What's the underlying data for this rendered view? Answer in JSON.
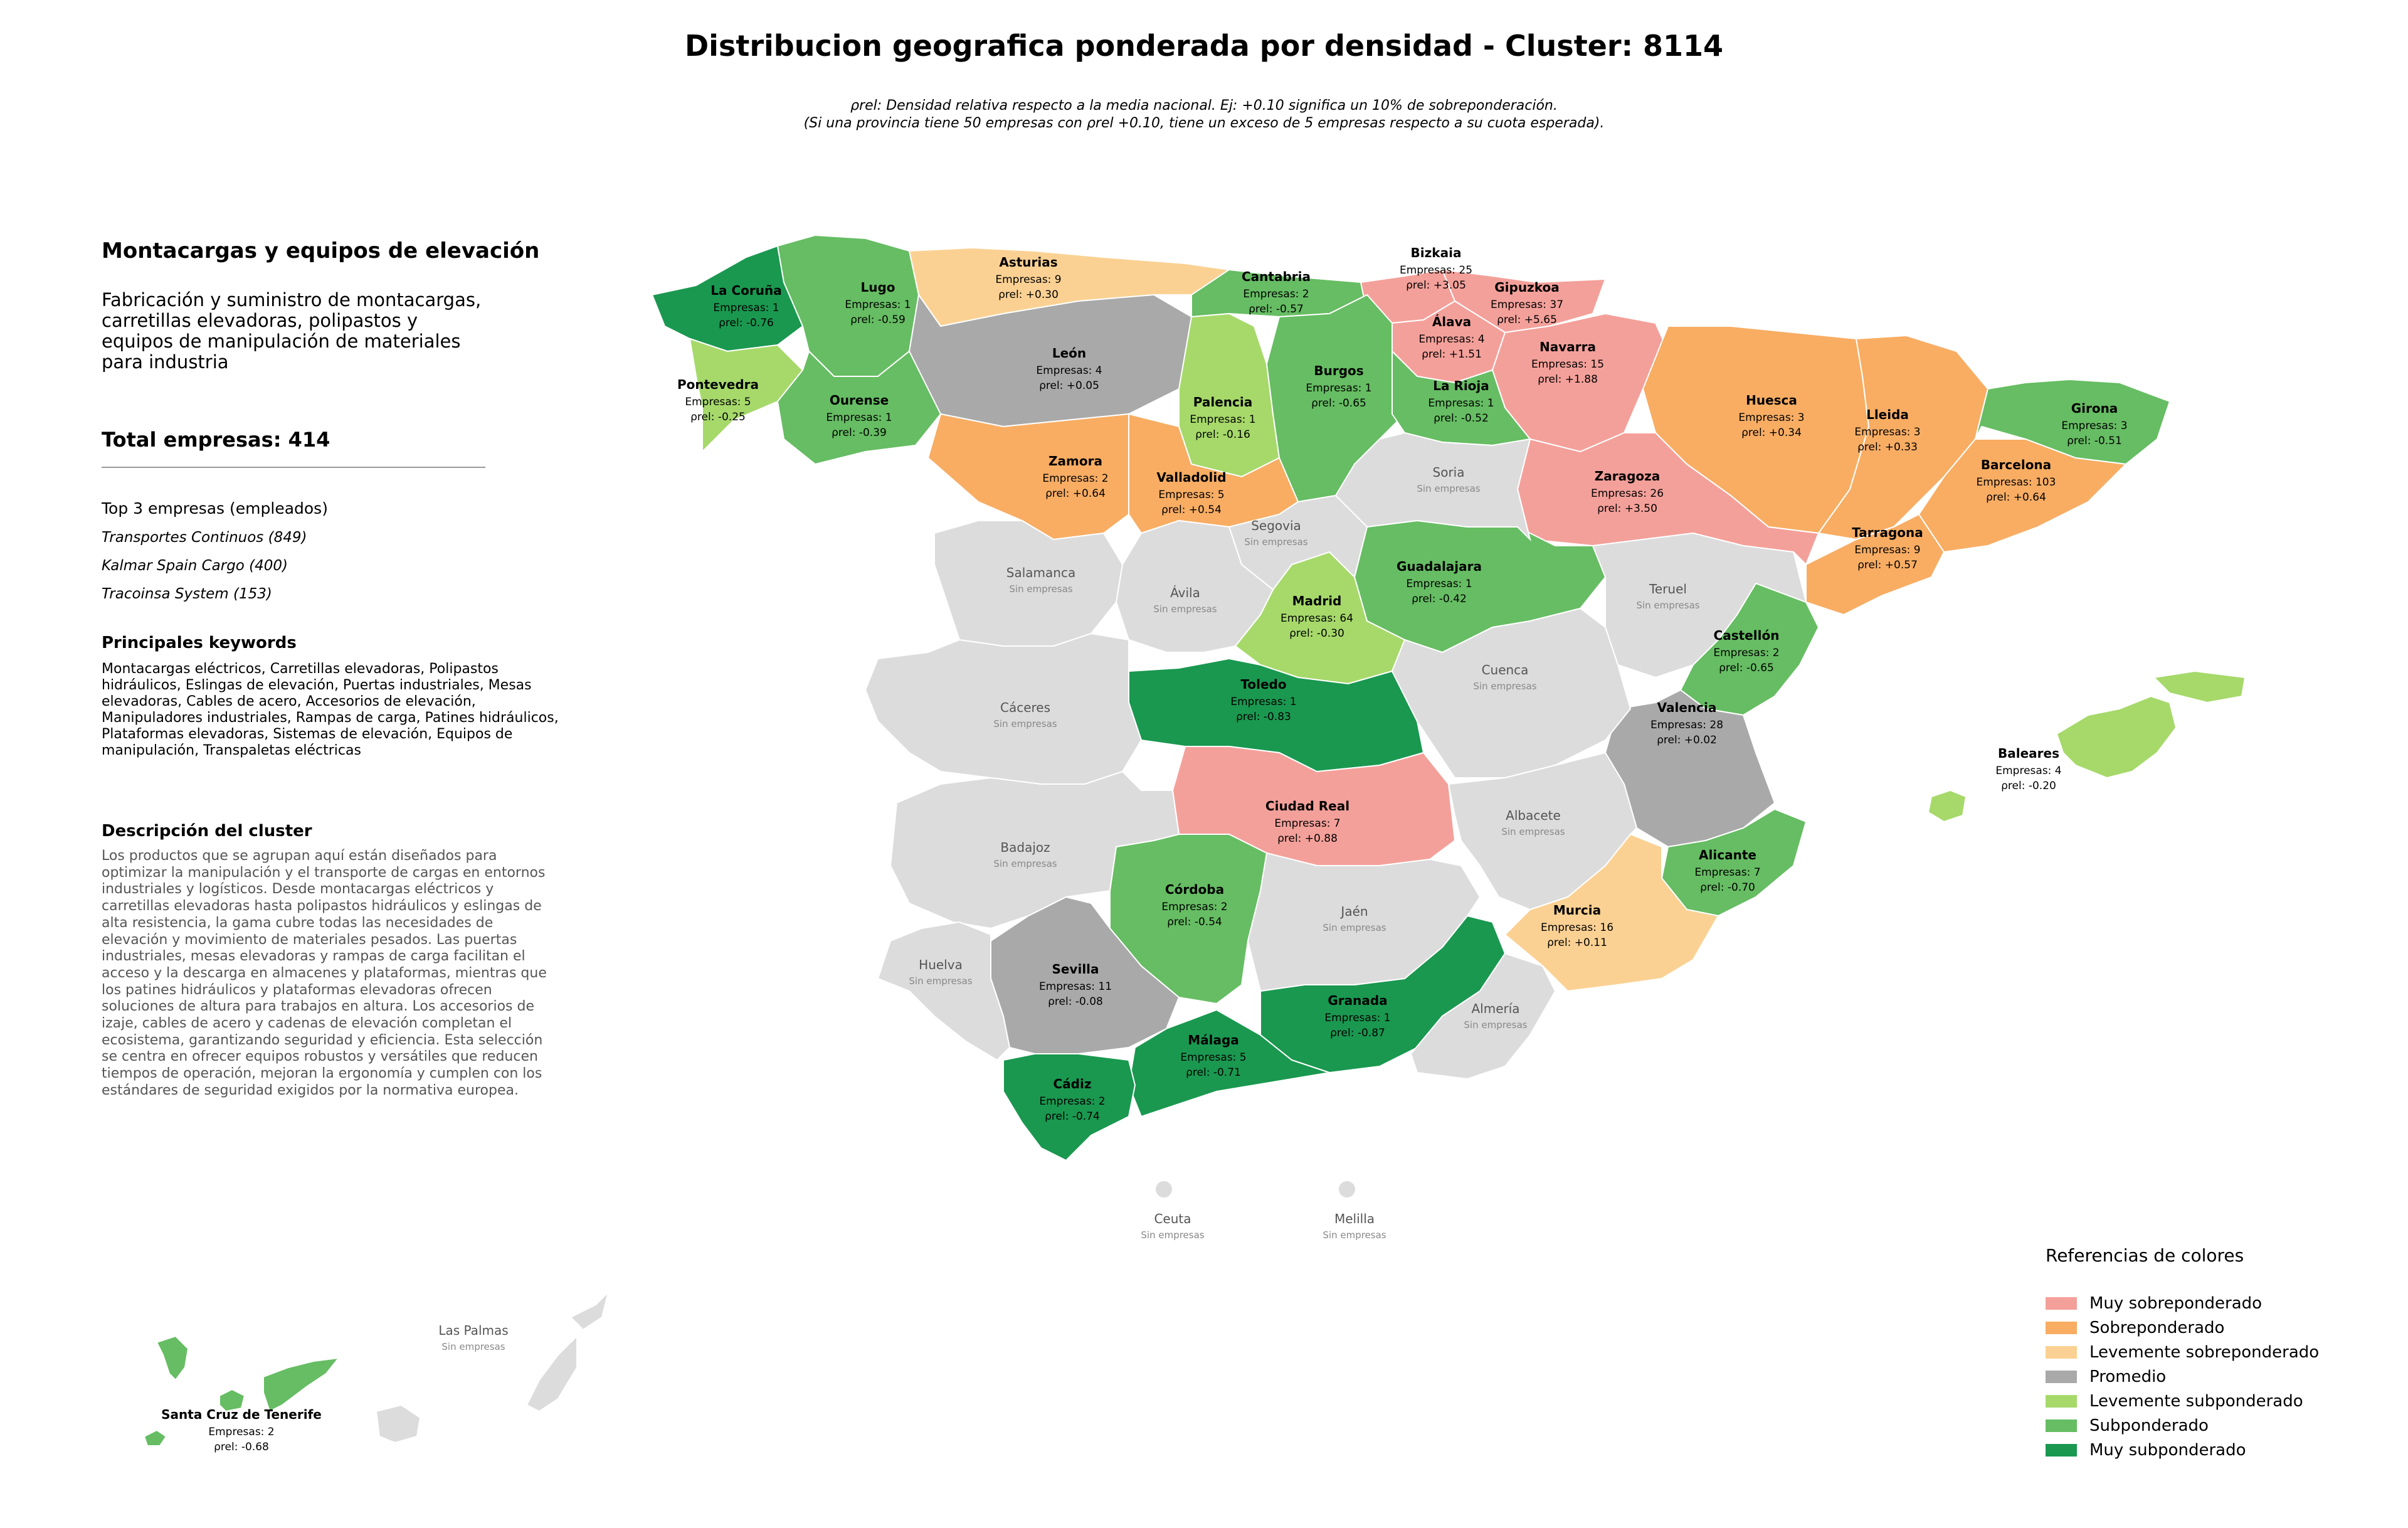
{
  "title": "Distribucion geografica ponderada por densidad - Cluster: 8114",
  "notes": [
    "ρrel: Densidad relativa respecto a la media nacional. Ej: +0.10 significa un 10% de sobreponderación.",
    "(Si una provincia tiene 50 empresas con ρrel +0.10, tiene un exceso de 5 empresas respecto a su cuota esperada)."
  ],
  "sidebar": {
    "heading": "Montacargas y equipos de elevación",
    "subtitle": "Fabricación y suministro de montacargas,\ncarretillas elevadoras, polipastos y\nequipos de manipulación de materiales\npara industria",
    "total": "Total empresas: 414",
    "top_title": "Top 3 empresas (empleados)",
    "top_companies": [
      "Transportes Continuos (849)",
      "Kalmar Spain Cargo (400)",
      "Tracoinsa System (153)"
    ],
    "keywords_title": "Principales keywords",
    "keywords": "Montacargas eléctricos, Carretillas elevadoras, Polipastos hidráulicos, Eslingas de elevación, Puertas industriales, Mesas elevadoras, Cables de acero, Accesorios de elevación, Manipuladores industriales, Rampas de carga, Patines hidráulicos, Plataformas elevadoras, Sistemas de elevación, Equipos de manipulación, Transpaletas eléctricas",
    "description_title": "Descripción del cluster",
    "description": "Los productos que se agrupan aquí están diseñados para optimizar la manipulación y el transporte de cargas en entornos industriales y logísticos. Desde montacargas eléctricos y carretillas elevadoras hasta polipastos hidráulicos y eslingas de alta resistencia, la gama cubre todas las necesidades de elevación y movimiento de materiales pesados. Las puertas industriales, mesas elevadoras y rampas de carga facilitan el acceso y la descarga en almacenes y plataformas, mientras que los patines hidráulicos y plataformas elevadoras ofrecen soluciones de altura para trabajos en altura. Los accesorios de izaje, cables de acero y cadenas de elevación completan el ecosistema, garantizando seguridad y eficiencia. Esta selección se centra en ofrecer equipos robustos y versátiles que reducen tiempos de operación, mejoran la ergonomía y cumplen con los estándares de seguridad exigidos por la normativa europea."
  },
  "legend": {
    "title": "Referencias de colores",
    "items": [
      {
        "label": "Muy sobreponderado",
        "color": "#f4a09a"
      },
      {
        "label": "Sobreponderado",
        "color": "#f8ad63"
      },
      {
        "label": "Levemente sobreponderado",
        "color": "#fbd193"
      },
      {
        "label": "Promedio",
        "color": "#a9a9a9"
      },
      {
        "label": "Levemente subponderado",
        "color": "#a6d96a"
      },
      {
        "label": "Subponderado",
        "color": "#66bd63"
      },
      {
        "label": "Muy subponderado",
        "color": "#1a9850"
      }
    ]
  },
  "labels": {
    "empresas_prefix": "Empresas: ",
    "rho_prefix": "ρrel: ",
    "sin_empresas": "Sin empresas"
  },
  "provinces": [
    {
      "name": "La Coruña",
      "empresas": 1,
      "rho": "-0.76",
      "cat": 6
    },
    {
      "name": "Lugo",
      "empresas": 1,
      "rho": "-0.59",
      "cat": 5
    },
    {
      "name": "Asturias",
      "empresas": 9,
      "rho": "+0.30",
      "cat": 2
    },
    {
      "name": "Cantabria",
      "empresas": 2,
      "rho": "-0.57",
      "cat": 5
    },
    {
      "name": "Bizkaia",
      "empresas": 25,
      "rho": "+3.05",
      "cat": 0
    },
    {
      "name": "Gipuzkoa",
      "empresas": 37,
      "rho": "+5.65",
      "cat": 0
    },
    {
      "name": "Álava",
      "empresas": 4,
      "rho": "+1.51",
      "cat": 0
    },
    {
      "name": "Navarra",
      "empresas": 15,
      "rho": "+1.88",
      "cat": 0
    },
    {
      "name": "Huesca",
      "empresas": 3,
      "rho": "+0.34",
      "cat": 1
    },
    {
      "name": "Lleida",
      "empresas": 3,
      "rho": "+0.33",
      "cat": 1
    },
    {
      "name": "Girona",
      "empresas": 3,
      "rho": "-0.51",
      "cat": 5
    },
    {
      "name": "Barcelona",
      "empresas": 103,
      "rho": "+0.64",
      "cat": 1
    },
    {
      "name": "Tarragona",
      "empresas": 9,
      "rho": "+0.57",
      "cat": 1
    },
    {
      "name": "Pontevedra",
      "empresas": 5,
      "rho": "-0.25",
      "cat": 4
    },
    {
      "name": "Ourense",
      "empresas": 1,
      "rho": "-0.39",
      "cat": 5
    },
    {
      "name": "León",
      "empresas": 4,
      "rho": "+0.05",
      "cat": 3
    },
    {
      "name": "Palencia",
      "empresas": 1,
      "rho": "-0.16",
      "cat": 4
    },
    {
      "name": "Burgos",
      "empresas": 1,
      "rho": "-0.65",
      "cat": 5
    },
    {
      "name": "La Rioja",
      "empresas": 1,
      "rho": "-0.52",
      "cat": 5
    },
    {
      "name": "Zamora",
      "empresas": 2,
      "rho": "+0.64",
      "cat": 1
    },
    {
      "name": "Valladolid",
      "empresas": 5,
      "rho": "+0.54",
      "cat": 1
    },
    {
      "name": "Zaragoza",
      "empresas": 26,
      "rho": "+3.50",
      "cat": 0
    },
    {
      "name": "Guadalajara",
      "empresas": 1,
      "rho": "-0.42",
      "cat": 5
    },
    {
      "name": "Madrid",
      "empresas": 64,
      "rho": "-0.30",
      "cat": 4
    },
    {
      "name": "Castellón",
      "empresas": 2,
      "rho": "-0.65",
      "cat": 5
    },
    {
      "name": "Toledo",
      "empresas": 1,
      "rho": "-0.83",
      "cat": 6
    },
    {
      "name": "Valencia",
      "empresas": 28,
      "rho": "+0.02",
      "cat": 3
    },
    {
      "name": "Baleares",
      "empresas": 4,
      "rho": "-0.20",
      "cat": 4
    },
    {
      "name": "Ciudad Real",
      "empresas": 7,
      "rho": "+0.88",
      "cat": 0
    },
    {
      "name": "Alicante",
      "empresas": 7,
      "rho": "-0.70",
      "cat": 5
    },
    {
      "name": "Córdoba",
      "empresas": 2,
      "rho": "-0.54",
      "cat": 5
    },
    {
      "name": "Murcia",
      "empresas": 16,
      "rho": "+0.11",
      "cat": 2
    },
    {
      "name": "Sevilla",
      "empresas": 11,
      "rho": "-0.08",
      "cat": 3
    },
    {
      "name": "Granada",
      "empresas": 1,
      "rho": "-0.87",
      "cat": 6
    },
    {
      "name": "Málaga",
      "empresas": 5,
      "rho": "-0.71",
      "cat": 6
    },
    {
      "name": "Cádiz",
      "empresas": 2,
      "rho": "-0.74",
      "cat": 6
    },
    {
      "name": "Santa Cruz de Tenerife",
      "empresas": 2,
      "rho": "-0.68",
      "cat": 5
    }
  ],
  "empty_provinces": [
    "Soria",
    "Segovia",
    "Salamanca",
    "Ávila",
    "Teruel",
    "Cáceres",
    "Cuenca",
    "Albacete",
    "Badajoz",
    "Jaén",
    "Huelva",
    "Almería",
    "Ceuta",
    "Melilla",
    "Las Palmas"
  ],
  "empty_color": "#dcdcdc"
}
